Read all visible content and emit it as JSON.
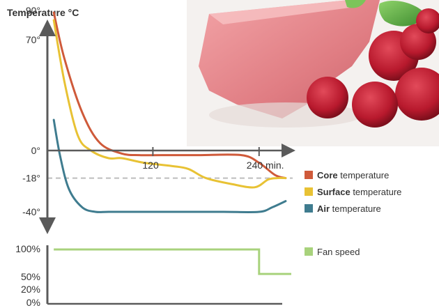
{
  "colors": {
    "core": "#cf5a3a",
    "surface": "#e8c234",
    "air": "#3f7c8f",
    "fan": "#a8d27c",
    "axis": "#5a5a5a",
    "dashed": "#bdbdbd"
  },
  "photo": {
    "icon": "raspberry-mousse-photo"
  },
  "chart_data": [
    {
      "type": "line",
      "title": "Temperature °C",
      "xlabel": "",
      "ylabel": "",
      "x_unit": "min.",
      "x_ticks": [
        120,
        240
      ],
      "x_tick_labels": [
        "120",
        "240 min."
      ],
      "y_ticks": [
        90,
        70,
        0,
        -18,
        -40
      ],
      "y_tick_labels": [
        "90°",
        "70°",
        "0°",
        "-18°",
        "-40°"
      ],
      "ylim": [
        -45,
        95
      ],
      "xlim": [
        0,
        275
      ],
      "reference_line": {
        "y": -18,
        "style": "dashed"
      },
      "series": [
        {
          "name": "Core temperature",
          "label_bold": "Core",
          "label_rest": " temperature",
          "color": "#cf5a3a",
          "x": [
            8,
            20,
            40,
            60,
            85,
            105,
            130,
            170,
            220,
            240,
            258,
            270
          ],
          "y": [
            90,
            60,
            25,
            5,
            -2,
            -3,
            -3,
            -3,
            -3,
            -8,
            -16,
            -18
          ]
        },
        {
          "name": "Surface temperature",
          "label_bold": "Surface",
          "label_rest": " temperature",
          "color": "#e8c234",
          "x": [
            8,
            20,
            35,
            50,
            70,
            85,
            110,
            140,
            160,
            180,
            210,
            235,
            250,
            260,
            270
          ],
          "y": [
            85,
            45,
            10,
            0,
            -5,
            -5,
            -8,
            -10,
            -12,
            -18,
            -22,
            -24,
            -19,
            -18,
            -18
          ]
        },
        {
          "name": "Air temperature",
          "label_bold": "Air",
          "label_rest": " temperature",
          "color": "#3f7c8f",
          "x": [
            8,
            15,
            25,
            40,
            55,
            70,
            100,
            150,
            200,
            240,
            255,
            270
          ],
          "y": [
            20,
            -3,
            -25,
            -37,
            -40,
            -40,
            -40,
            -40,
            -40,
            -40,
            -37,
            -33
          ]
        }
      ]
    },
    {
      "type": "line",
      "title": "",
      "xlabel": "",
      "ylabel": "",
      "y_ticks": [
        100,
        50,
        20,
        0
      ],
      "y_tick_labels": [
        "100%",
        "50%",
        "20%",
        "0%"
      ],
      "ylim": [
        0,
        100
      ],
      "xlim": [
        0,
        275
      ],
      "series": [
        {
          "name": "Fan speed",
          "color": "#a8d27c",
          "x": [
            8,
            240,
            240,
            280
          ],
          "y": [
            100,
            100,
            55,
            55
          ]
        }
      ]
    }
  ]
}
